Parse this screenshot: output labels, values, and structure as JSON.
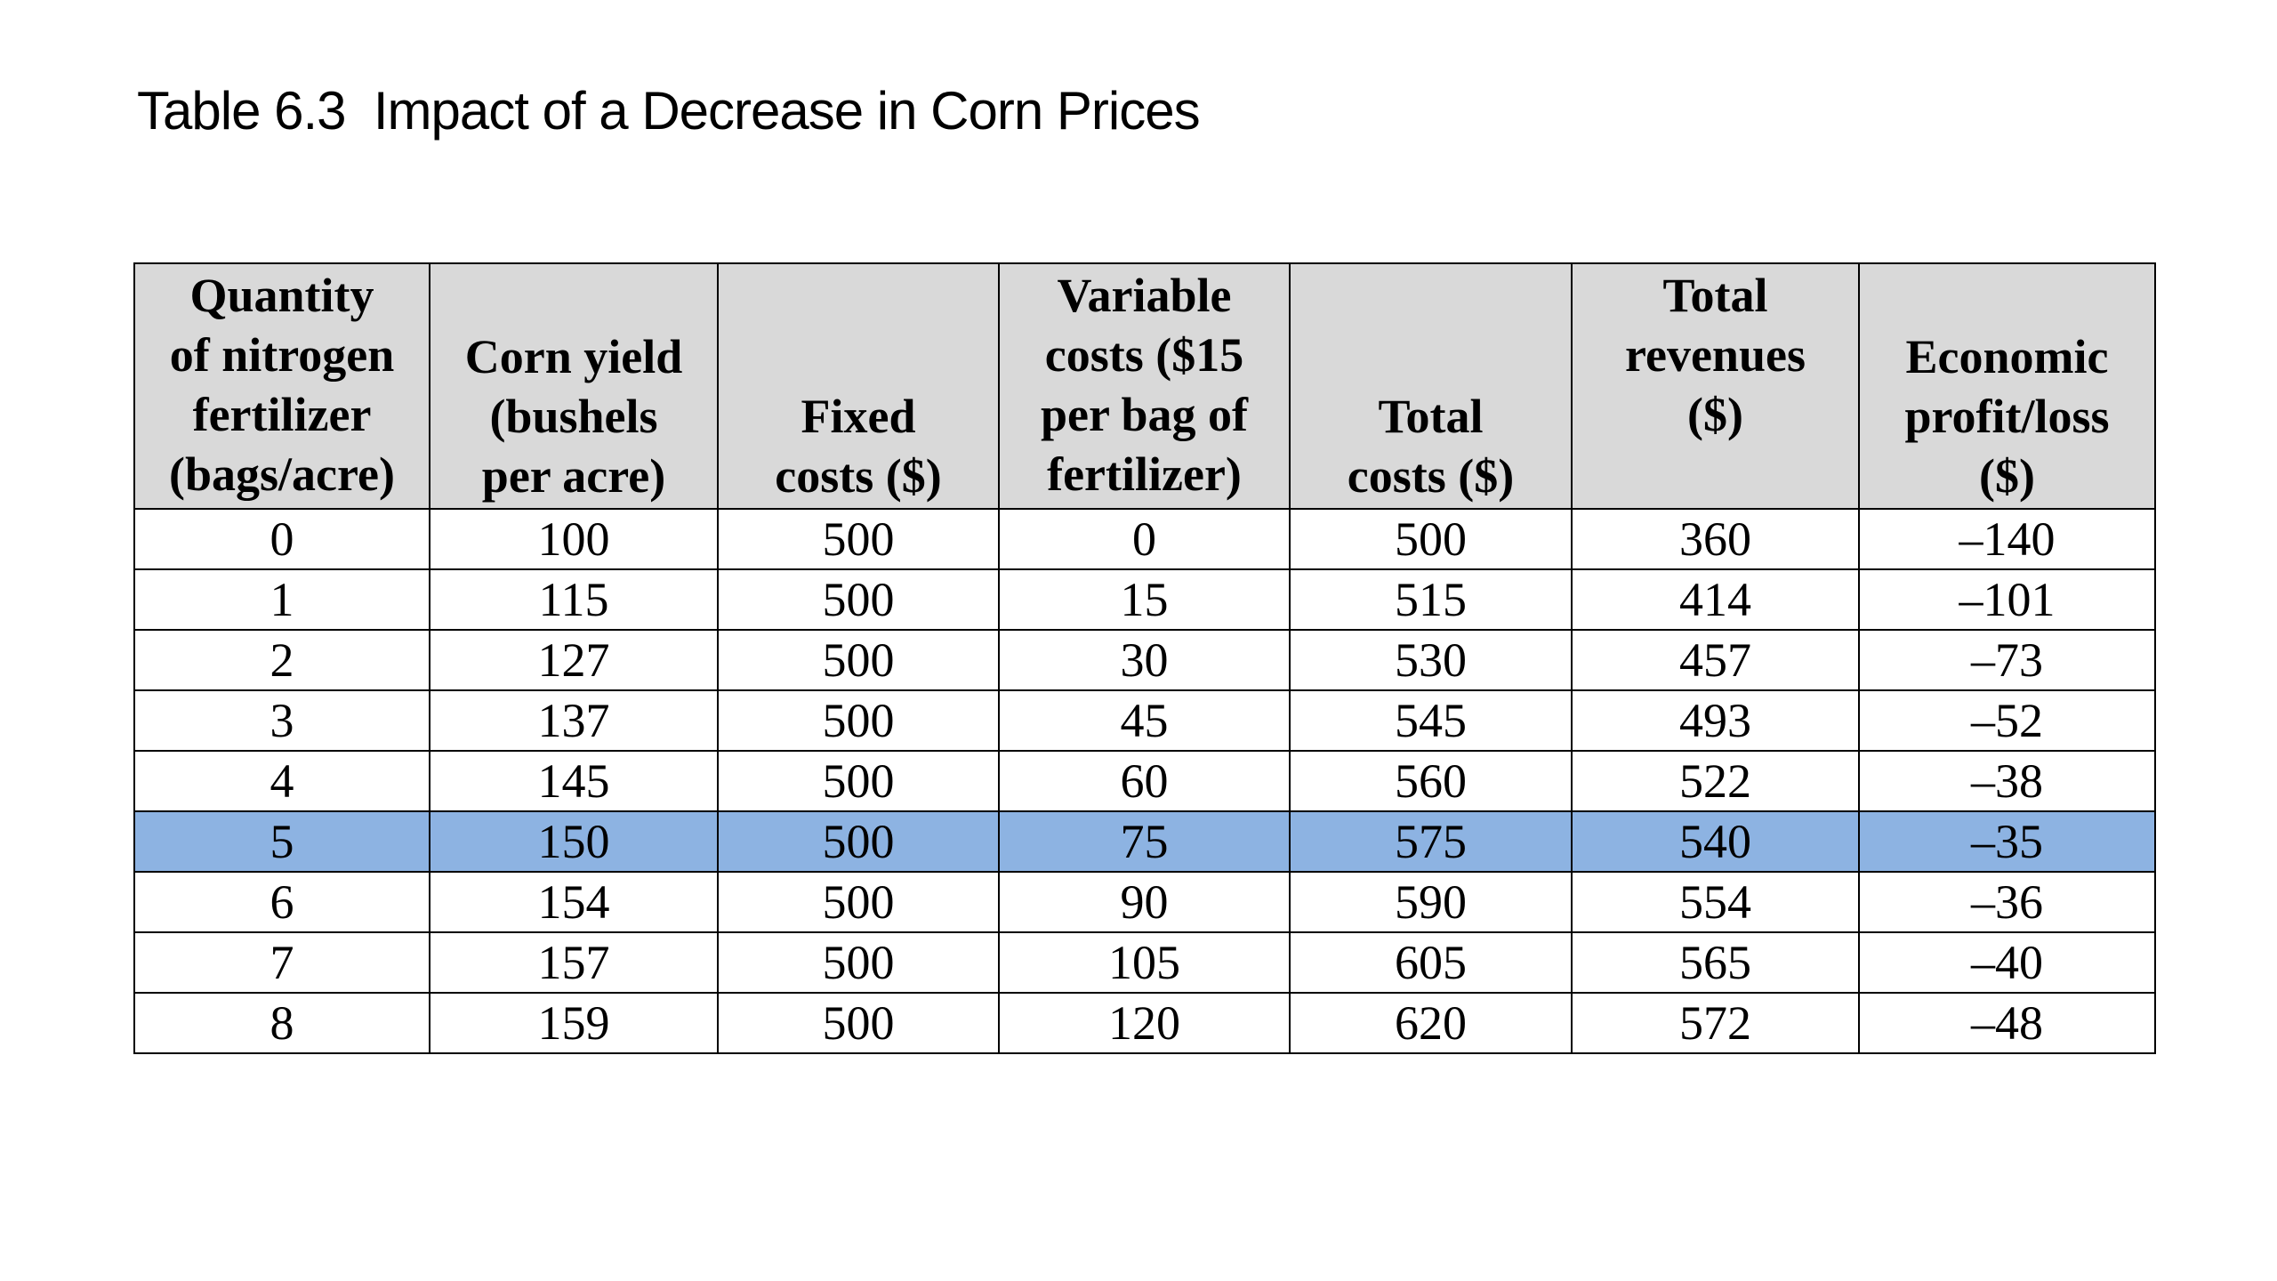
{
  "title": "Table 6.3  Impact of a Decrease in Corn Prices",
  "table": {
    "headers": [
      [
        "Quantity",
        "of nitrogen",
        "fertilizer",
        "(bags/acre)"
      ],
      [
        "Corn yield",
        "(bushels",
        "per acre)"
      ],
      [
        "Fixed",
        "costs ($)"
      ],
      [
        "Variable",
        "costs ($15",
        "per bag of",
        "fertilizer)"
      ],
      [
        "Total",
        "costs ($)"
      ],
      [
        "Total",
        "revenues",
        "($)"
      ],
      [
        "Economic",
        "profit/loss",
        "($)"
      ]
    ],
    "rows": [
      [
        "0",
        "100",
        "500",
        "0",
        "500",
        "360",
        "–140"
      ],
      [
        "1",
        "115",
        "500",
        "15",
        "515",
        "414",
        "–101"
      ],
      [
        "2",
        "127",
        "500",
        "30",
        "530",
        "457",
        "–73"
      ],
      [
        "3",
        "137",
        "500",
        "45",
        "545",
        "493",
        "–52"
      ],
      [
        "4",
        "145",
        "500",
        "60",
        "560",
        "522",
        "–38"
      ],
      [
        "5",
        "150",
        "500",
        "75",
        "575",
        "540",
        "–35"
      ],
      [
        "6",
        "154",
        "500",
        "90",
        "590",
        "554",
        "–36"
      ],
      [
        "7",
        "157",
        "500",
        "105",
        "605",
        "565",
        "–40"
      ],
      [
        "8",
        "159",
        "500",
        "120",
        "620",
        "572",
        "–48"
      ]
    ],
    "highlighted_row_index": 5,
    "header_background": "#d9d9d9",
    "highlight_color": "#8db3e2"
  }
}
